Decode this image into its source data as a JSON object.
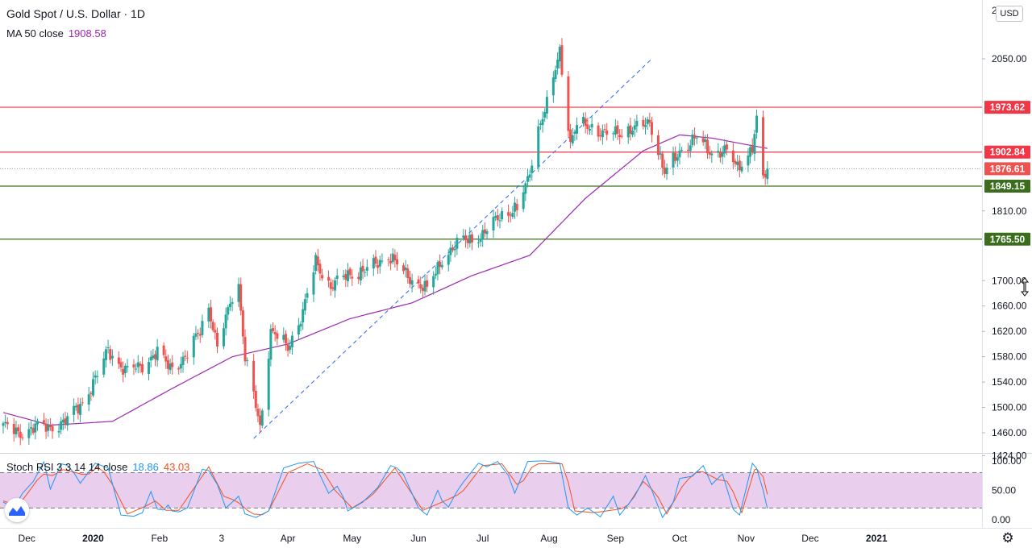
{
  "header": {
    "title": "Gold Spot / U.S. Dollar · 1D",
    "currency_badge": "USD",
    "ma_label": "MA 50 close",
    "ma_value": "1908.58",
    "rsi_label": "Stoch RSI 3 3 14 14 close",
    "rsi_k_value": "18.86",
    "rsi_d_value": "43.03"
  },
  "colors": {
    "up": "#26a69a",
    "down": "#ef5350",
    "ma": "#9c27b0",
    "k_line": "#2196f3",
    "d_line": "#f4511e",
    "resistance": "#f23645",
    "support": "#3a6e1d",
    "rsi_band": "#e1bee7",
    "trendline": "#2962ff"
  },
  "chart_data": [
    {
      "type": "candlestick",
      "title": "Gold Spot / U.S. Dollar · 1D",
      "ylim": [
        1410,
        2020
      ],
      "y_ticks": [
        1424,
        1460,
        1500,
        1540,
        1580,
        1620,
        1660,
        1700,
        1810,
        2050
      ],
      "y_tick_labels": [
        "1424.00",
        "1460.00",
        "1500.00",
        "1540.00",
        "1580.00",
        "1620.00",
        "1660.00",
        "1700.00",
        "1810.00",
        "2050.00"
      ],
      "top_clipped_label": "2",
      "x_labels": [
        "Dec",
        "2020",
        "Feb",
        "3",
        "Apr",
        "May",
        "Jun",
        "Jul",
        "Aug",
        "Sep",
        "Oct",
        "Nov",
        "Dec",
        "2021"
      ],
      "price_levels": [
        {
          "value": 1973.62,
          "label": "1973.62",
          "role": "resistance"
        },
        {
          "value": 1902.84,
          "label": "1902.84",
          "role": "resistance"
        },
        {
          "value": 1876.61,
          "label": "1876.61",
          "role": "last"
        },
        {
          "value": 1849.15,
          "label": "1849.15",
          "role": "support"
        },
        {
          "value": 1765.5,
          "label": "1765.50",
          "role": "support"
        }
      ],
      "trendline": {
        "from": {
          "date": "2020-03-16",
          "value": 1451
        },
        "to": {
          "date": "2020-09-18",
          "value": 2050
        }
      },
      "anchors": [
        [
          "2019-11-20",
          1472
        ],
        [
          "2019-11-27",
          1458
        ],
        [
          "2019-12-05",
          1470
        ],
        [
          "2019-12-12",
          1468
        ],
        [
          "2019-12-19",
          1478
        ],
        [
          "2019-12-27",
          1508
        ],
        [
          "2020-01-03",
          1550
        ],
        [
          "2020-01-08",
          1592
        ],
        [
          "2020-01-16",
          1556
        ],
        [
          "2020-01-24",
          1568
        ],
        [
          "2020-01-31",
          1585
        ],
        [
          "2020-02-06",
          1565
        ],
        [
          "2020-02-13",
          1575
        ],
        [
          "2020-02-20",
          1625
        ],
        [
          "2020-02-24",
          1660
        ],
        [
          "2020-02-28",
          1590
        ],
        [
          "2020-03-06",
          1680
        ],
        [
          "2020-03-09",
          1692
        ],
        [
          "2020-03-12",
          1575
        ],
        [
          "2020-03-16",
          1520
        ],
        [
          "2020-03-19",
          1470
        ],
        [
          "2020-03-24",
          1620
        ],
        [
          "2020-04-01",
          1595
        ],
        [
          "2020-04-08",
          1650
        ],
        [
          "2020-04-14",
          1730
        ],
        [
          "2020-04-21",
          1690
        ],
        [
          "2020-04-29",
          1710
        ],
        [
          "2020-05-07",
          1715
        ],
        [
          "2020-05-18",
          1740
        ],
        [
          "2020-05-26",
          1710
        ],
        [
          "2020-06-05",
          1685
        ],
        [
          "2020-06-12",
          1735
        ],
        [
          "2020-06-22",
          1765
        ],
        [
          "2020-07-01",
          1770
        ],
        [
          "2020-07-09",
          1805
        ],
        [
          "2020-07-17",
          1810
        ],
        [
          "2020-07-22",
          1860
        ],
        [
          "2020-07-27",
          1940
        ],
        [
          "2020-07-31",
          1975
        ],
        [
          "2020-08-06",
          2065
        ],
        [
          "2020-08-11",
          1915
        ],
        [
          "2020-08-14",
          1945
        ],
        [
          "2020-08-20",
          1945
        ],
        [
          "2020-08-27",
          1930
        ],
        [
          "2020-09-03",
          1935
        ],
        [
          "2020-09-11",
          1940
        ],
        [
          "2020-09-17",
          1952
        ],
        [
          "2020-09-21",
          1905
        ],
        [
          "2020-09-24",
          1868
        ],
        [
          "2020-10-01",
          1905
        ],
        [
          "2020-10-09",
          1925
        ],
        [
          "2020-10-16",
          1903
        ],
        [
          "2020-10-23",
          1902
        ],
        [
          "2020-10-28",
          1880
        ],
        [
          "2020-11-04",
          1908
        ],
        [
          "2020-11-06",
          1950
        ],
        [
          "2020-11-09",
          1860
        ],
        [
          "2020-11-11",
          1876.61
        ]
      ],
      "ma50_anchors": [
        [
          "2019-11-20",
          1492
        ],
        [
          "2019-12-12",
          1472
        ],
        [
          "2020-01-10",
          1478
        ],
        [
          "2020-02-07",
          1530
        ],
        [
          "2020-03-06",
          1580
        ],
        [
          "2020-04-01",
          1600
        ],
        [
          "2020-04-30",
          1640
        ],
        [
          "2020-05-29",
          1665
        ],
        [
          "2020-06-26",
          1708
        ],
        [
          "2020-07-23",
          1740
        ],
        [
          "2020-08-18",
          1830
        ],
        [
          "2020-09-14",
          1905
        ],
        [
          "2020-10-01",
          1930
        ],
        [
          "2020-10-16",
          1925
        ],
        [
          "2020-11-11",
          1908.58
        ]
      ]
    },
    {
      "type": "line",
      "title": "Stoch RSI 3 3 14 14 close",
      "ylim": [
        -8,
        105
      ],
      "y_ticks": [
        0,
        50,
        100
      ],
      "y_tick_labels": [
        "0.00",
        "50.00",
        "100.00"
      ],
      "band": [
        20,
        80
      ],
      "series": [
        {
          "name": "K",
          "last": 18.86
        },
        {
          "name": "D",
          "last": 43.03
        }
      ],
      "k_anchors": [
        [
          "2019-11-20",
          30
        ],
        [
          "2019-11-25",
          20
        ],
        [
          "2019-11-29",
          45
        ],
        [
          "2019-12-04",
          65
        ],
        [
          "2019-12-09",
          98
        ],
        [
          "2019-12-12",
          52
        ],
        [
          "2019-12-17",
          95
        ],
        [
          "2019-12-21",
          92
        ],
        [
          "2019-12-26",
          62
        ],
        [
          "2020-01-02",
          96
        ],
        [
          "2020-01-08",
          88
        ],
        [
          "2020-01-14",
          8
        ],
        [
          "2020-01-20",
          6
        ],
        [
          "2020-01-24",
          12
        ],
        [
          "2020-01-28",
          48
        ],
        [
          "2020-02-01",
          8
        ],
        [
          "2020-02-05",
          25
        ],
        [
          "2020-02-08",
          10
        ],
        [
          "2020-02-14",
          20
        ],
        [
          "2020-02-22",
          95
        ],
        [
          "2020-02-28",
          60
        ],
        [
          "2020-03-03",
          20
        ],
        [
          "2020-03-09",
          40
        ],
        [
          "2020-03-12",
          10
        ],
        [
          "2020-03-17",
          4
        ],
        [
          "2020-03-23",
          15
        ],
        [
          "2020-03-30",
          88
        ],
        [
          "2020-04-06",
          96
        ],
        [
          "2020-04-13",
          99
        ],
        [
          "2020-04-20",
          45
        ],
        [
          "2020-04-25",
          60
        ],
        [
          "2020-04-29",
          15
        ],
        [
          "2020-05-06",
          30
        ],
        [
          "2020-05-13",
          55
        ],
        [
          "2020-05-19",
          92
        ],
        [
          "2020-05-24",
          85
        ],
        [
          "2020-06-01",
          20
        ],
        [
          "2020-06-05",
          8
        ],
        [
          "2020-06-10",
          50
        ],
        [
          "2020-06-14",
          15
        ],
        [
          "2020-06-20",
          55
        ],
        [
          "2020-06-29",
          96
        ],
        [
          "2020-07-03",
          90
        ],
        [
          "2020-07-08",
          99
        ],
        [
          "2020-07-13",
          75
        ],
        [
          "2020-07-16",
          45
        ],
        [
          "2020-07-22",
          99
        ],
        [
          "2020-07-30",
          100
        ],
        [
          "2020-08-06",
          96
        ],
        [
          "2020-08-10",
          20
        ],
        [
          "2020-08-14",
          8
        ],
        [
          "2020-08-19",
          20
        ],
        [
          "2020-08-25",
          5
        ],
        [
          "2020-08-31",
          40
        ],
        [
          "2020-09-03",
          8
        ],
        [
          "2020-09-10",
          40
        ],
        [
          "2020-09-15",
          75
        ],
        [
          "2020-09-18",
          50
        ],
        [
          "2020-09-23",
          4
        ],
        [
          "2020-09-28",
          30
        ],
        [
          "2020-10-01",
          70
        ],
        [
          "2020-10-07",
          74
        ],
        [
          "2020-10-12",
          92
        ],
        [
          "2020-10-16",
          60
        ],
        [
          "2020-10-21",
          78
        ],
        [
          "2020-10-26",
          18
        ],
        [
          "2020-10-29",
          8
        ],
        [
          "2020-11-04",
          96
        ],
        [
          "2020-11-07",
          82
        ],
        [
          "2020-11-11",
          18.86
        ]
      ],
      "d_anchors": [
        [
          "2019-11-20",
          32
        ],
        [
          "2019-11-27",
          24
        ],
        [
          "2019-12-02",
          48
        ],
        [
          "2019-12-08",
          78
        ],
        [
          "2019-12-13",
          75
        ],
        [
          "2019-12-18",
          85
        ],
        [
          "2019-12-24",
          80
        ],
        [
          "2019-12-29",
          75
        ],
        [
          "2020-01-04",
          92
        ],
        [
          "2020-01-10",
          60
        ],
        [
          "2020-01-17",
          10
        ],
        [
          "2020-01-25",
          22
        ],
        [
          "2020-01-30",
          32
        ],
        [
          "2020-02-04",
          16
        ],
        [
          "2020-02-10",
          16
        ],
        [
          "2020-02-24",
          90
        ],
        [
          "2020-03-02",
          40
        ],
        [
          "2020-03-08",
          32
        ],
        [
          "2020-03-15",
          10
        ],
        [
          "2020-03-22",
          8
        ],
        [
          "2020-04-01",
          80
        ],
        [
          "2020-04-10",
          95
        ],
        [
          "2020-04-17",
          85
        ],
        [
          "2020-04-23",
          50
        ],
        [
          "2020-05-01",
          20
        ],
        [
          "2020-05-10",
          40
        ],
        [
          "2020-05-21",
          88
        ],
        [
          "2020-06-03",
          16
        ],
        [
          "2020-06-12",
          30
        ],
        [
          "2020-06-21",
          45
        ],
        [
          "2020-07-01",
          92
        ],
        [
          "2020-07-10",
          95
        ],
        [
          "2020-07-18",
          55
        ],
        [
          "2020-07-25",
          95
        ],
        [
          "2020-08-08",
          95
        ],
        [
          "2020-08-13",
          15
        ],
        [
          "2020-08-22",
          12
        ],
        [
          "2020-08-28",
          15
        ],
        [
          "2020-09-06",
          20
        ],
        [
          "2020-09-14",
          65
        ],
        [
          "2020-09-20",
          45
        ],
        [
          "2020-09-25",
          10
        ],
        [
          "2020-10-03",
          62
        ],
        [
          "2020-10-10",
          85
        ],
        [
          "2020-10-19",
          68
        ],
        [
          "2020-10-24",
          65
        ],
        [
          "2020-10-30",
          12
        ],
        [
          "2020-11-05",
          85
        ],
        [
          "2020-11-08",
          88
        ],
        [
          "2020-11-11",
          43.03
        ]
      ]
    }
  ]
}
